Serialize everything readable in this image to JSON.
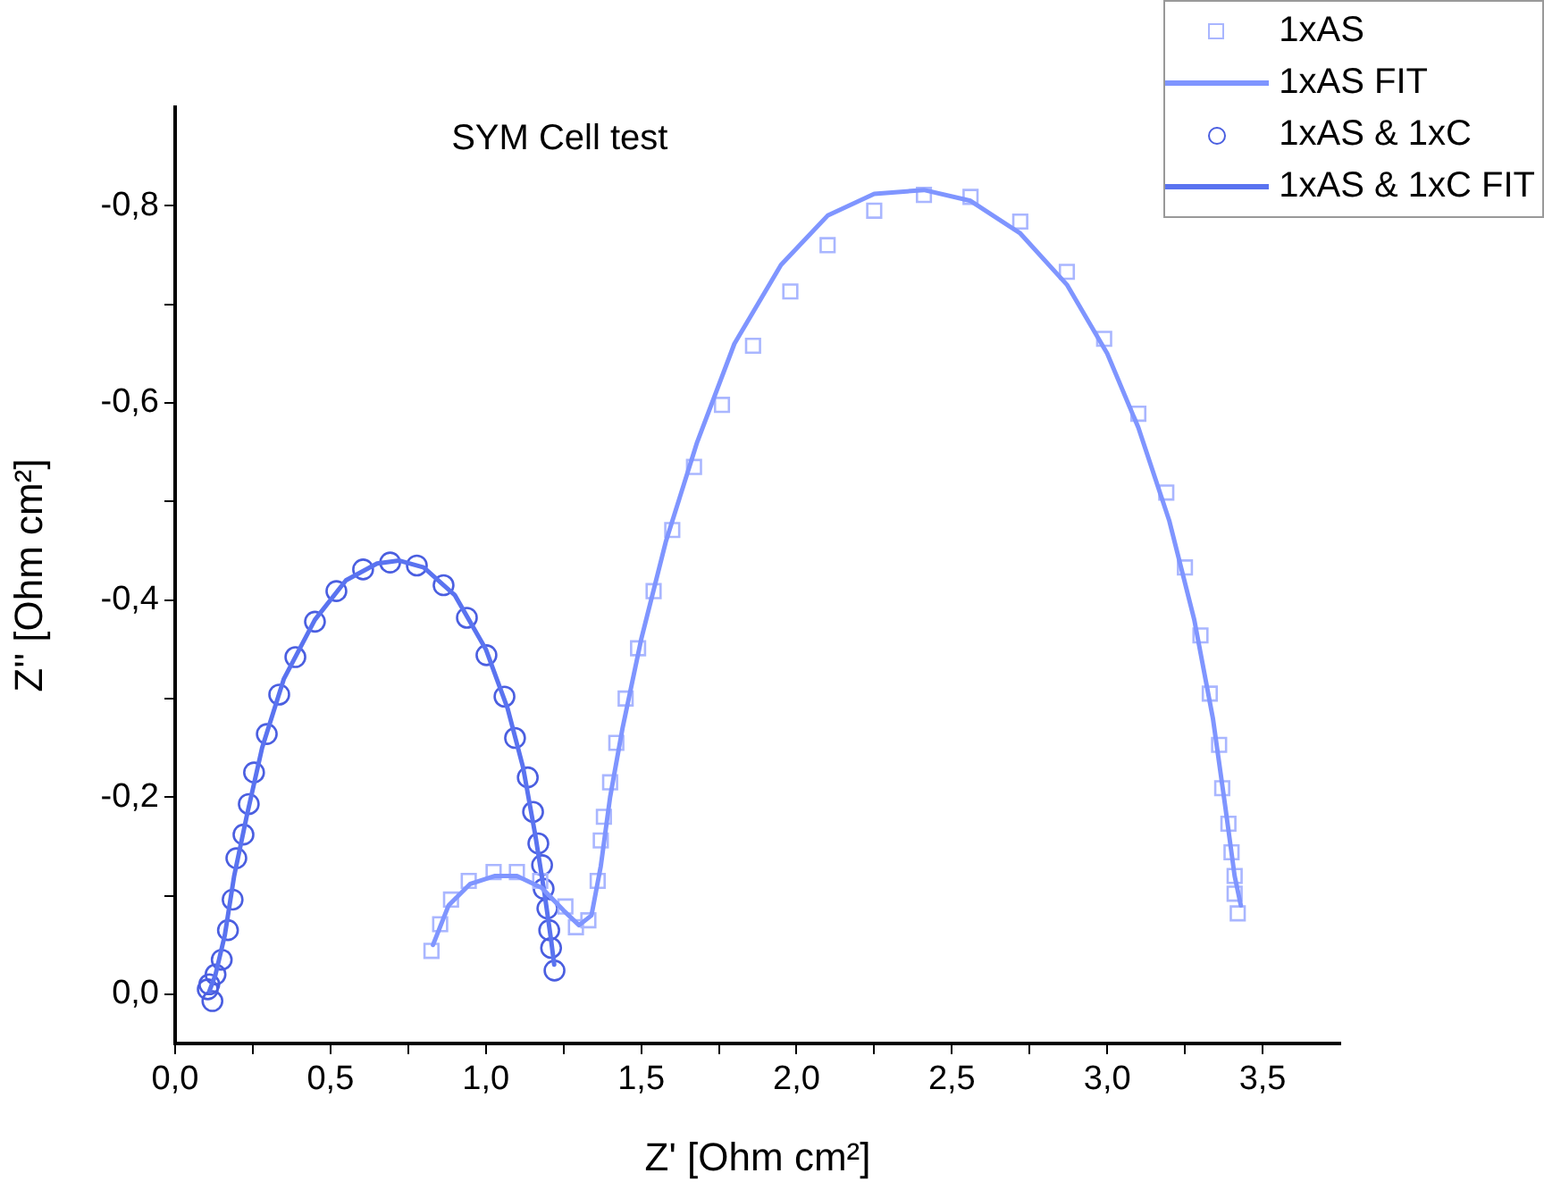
{
  "chart_data": {
    "type": "scatter",
    "title": "SYM Cell test",
    "xlabel": "Z' [Ohm cm²]",
    "ylabel": "Z'' [Ohm cm²]",
    "xlim": [
      0,
      3.75
    ],
    "ylim": [
      0.05,
      -0.9
    ],
    "xticks": [
      {
        "value": 0,
        "label": "0,0"
      },
      {
        "value": 0.25,
        "label": null
      },
      {
        "value": 0.5,
        "label": "0,5"
      },
      {
        "value": 0.75,
        "label": null
      },
      {
        "value": 1,
        "label": "1,0"
      },
      {
        "value": 1.25,
        "label": null
      },
      {
        "value": 1.5,
        "label": "1,5"
      },
      {
        "value": 1.75,
        "label": null
      },
      {
        "value": 2,
        "label": "2,0"
      },
      {
        "value": 2.25,
        "label": null
      },
      {
        "value": 2.5,
        "label": "2,5"
      },
      {
        "value": 2.75,
        "label": null
      },
      {
        "value": 3,
        "label": "3,0"
      },
      {
        "value": 3.25,
        "label": null
      },
      {
        "value": 3.5,
        "label": "3,5"
      }
    ],
    "yticks": [
      {
        "value": 0,
        "label": "0,0"
      },
      {
        "value": -0.1,
        "label": null
      },
      {
        "value": -0.2,
        "label": "-0,2"
      },
      {
        "value": -0.3,
        "label": null
      },
      {
        "value": -0.4,
        "label": "-0,4"
      },
      {
        "value": -0.5,
        "label": null
      },
      {
        "value": -0.6,
        "label": "-0,6"
      },
      {
        "value": -0.7,
        "label": null
      },
      {
        "value": -0.8,
        "label": "-0,8"
      }
    ],
    "grid": false,
    "legend": "top right",
    "series": [
      {
        "name": "1xAS",
        "type": "scatter",
        "marker": "square",
        "color": "#a9b6ff",
        "x": [
          0.825,
          0.853,
          0.888,
          0.945,
          1.025,
          1.1,
          1.175,
          1.256,
          1.29,
          1.33,
          1.36,
          1.37,
          1.38,
          1.4,
          1.42,
          1.45,
          1.49,
          1.54,
          1.6,
          1.67,
          1.76,
          1.86,
          1.98,
          2.1,
          2.25,
          2.41,
          2.56,
          2.72,
          2.87,
          2.99,
          3.1,
          3.19,
          3.25,
          3.3,
          3.33,
          3.36,
          3.37,
          3.39,
          3.4,
          3.41,
          3.41,
          3.42
        ],
        "values": [
          -0.044,
          -0.071,
          -0.096,
          -0.115,
          -0.124,
          -0.124,
          -0.115,
          -0.089,
          -0.068,
          -0.075,
          -0.115,
          -0.156,
          -0.18,
          -0.215,
          -0.255,
          -0.3,
          -0.351,
          -0.409,
          -0.471,
          -0.535,
          -0.598,
          -0.658,
          -0.713,
          -0.76,
          -0.795,
          -0.811,
          -0.809,
          -0.784,
          -0.733,
          -0.665,
          -0.589,
          -0.509,
          -0.433,
          -0.364,
          -0.305,
          -0.253,
          -0.209,
          -0.173,
          -0.144,
          -0.12,
          -0.102,
          -0.082
        ]
      },
      {
        "name": "1xAS FIT",
        "type": "line",
        "marker": "none",
        "line_style": "solid",
        "color": "#7f95ff",
        "x": [
          0.83,
          0.88,
          0.95,
          1.03,
          1.1,
          1.18,
          1.25,
          1.3,
          1.34,
          1.37,
          1.4,
          1.44,
          1.5,
          1.58,
          1.68,
          1.8,
          1.95,
          2.1,
          2.25,
          2.41,
          2.56,
          2.72,
          2.87,
          3.0,
          3.1,
          3.2,
          3.28,
          3.34,
          3.38,
          3.41,
          3.43
        ],
        "values": [
          -0.05,
          -0.09,
          -0.112,
          -0.12,
          -0.12,
          -0.108,
          -0.085,
          -0.07,
          -0.08,
          -0.13,
          -0.2,
          -0.27,
          -0.36,
          -0.46,
          -0.56,
          -0.66,
          -0.74,
          -0.79,
          -0.812,
          -0.816,
          -0.805,
          -0.772,
          -0.72,
          -0.65,
          -0.575,
          -0.48,
          -0.38,
          -0.28,
          -0.19,
          -0.12,
          -0.09
        ]
      },
      {
        "name": "1xAS & 1xC",
        "type": "scatter",
        "marker": "circle",
        "color": "#4a5ee0",
        "x": [
          0.11,
          0.12,
          0.105,
          0.13,
          0.15,
          0.17,
          0.185,
          0.197,
          0.22,
          0.237,
          0.254,
          0.295,
          0.335,
          0.387,
          0.45,
          0.519,
          0.605,
          0.692,
          0.778,
          0.864,
          0.939,
          1.002,
          1.06,
          1.094,
          1.135,
          1.152,
          1.169,
          1.181,
          1.186,
          1.198,
          1.204,
          1.21,
          1.221
        ],
        "values": [
          -0.01,
          0.007,
          -0.005,
          -0.02,
          -0.035,
          -0.065,
          -0.096,
          -0.138,
          -0.162,
          -0.193,
          -0.225,
          -0.264,
          -0.304,
          -0.342,
          -0.378,
          -0.409,
          -0.431,
          -0.438,
          -0.435,
          -0.415,
          -0.382,
          -0.344,
          -0.302,
          -0.26,
          -0.22,
          -0.185,
          -0.153,
          -0.131,
          -0.107,
          -0.087,
          -0.065,
          -0.047,
          -0.024
        ]
      },
      {
        "name": "1xAS & 1xC FIT",
        "type": "line",
        "marker": "none",
        "line_style": "solid",
        "color": "#5a73f0",
        "x": [
          0.11,
          0.13,
          0.16,
          0.19,
          0.23,
          0.28,
          0.35,
          0.45,
          0.55,
          0.65,
          0.72,
          0.8,
          0.9,
          1.0,
          1.07,
          1.12,
          1.16,
          1.19,
          1.21,
          1.22
        ],
        "values": [
          -0.003,
          -0.02,
          -0.06,
          -0.12,
          -0.18,
          -0.25,
          -0.32,
          -0.38,
          -0.42,
          -0.437,
          -0.44,
          -0.433,
          -0.405,
          -0.35,
          -0.29,
          -0.23,
          -0.16,
          -0.1,
          -0.055,
          -0.03
        ]
      }
    ]
  }
}
